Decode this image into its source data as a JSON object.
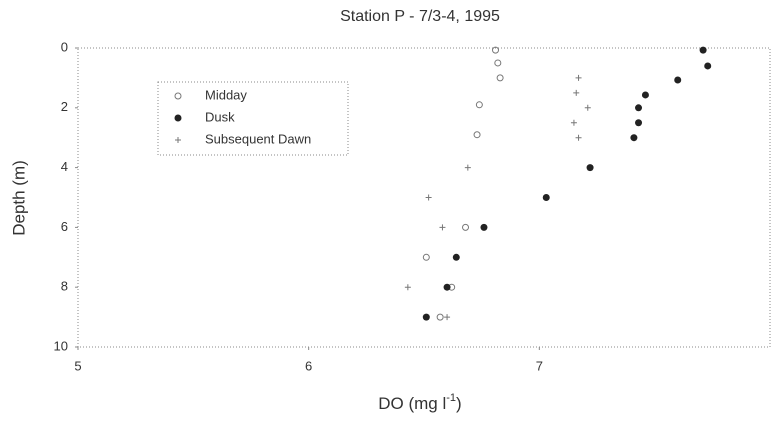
{
  "chart_data": {
    "type": "scatter",
    "title": "Station P - 7/3-4, 1995",
    "x_label": "DO (mg l",
    "x_label_sup": "-1",
    "x_label_end": ")",
    "y_label": "Depth (m)",
    "xlim": [
      5,
      8
    ],
    "xticks": [
      5,
      6,
      7
    ],
    "ylim": [
      10,
      0
    ],
    "yticks": [
      0,
      2,
      4,
      6,
      8,
      10
    ],
    "series": [
      {
        "name": "Midday",
        "color": "#777777",
        "marker": "open",
        "x": [
          6.81,
          6.82,
          6.83,
          6.74,
          6.73,
          6.68,
          6.51,
          6.62,
          6.57
        ],
        "values": [
          0.07,
          0.5,
          1,
          1.9,
          2.9,
          6,
          7,
          8,
          9
        ]
      },
      {
        "name": "Dusk",
        "color": "#222222",
        "marker": "filled",
        "x": [
          7.71,
          7.73,
          7.6,
          7.46,
          7.43,
          7.43,
          7.41,
          7.22,
          7.03,
          6.76,
          6.64,
          6.6,
          6.51
        ],
        "values": [
          0.07,
          0.6,
          1.07,
          1.57,
          2,
          2.5,
          3,
          4,
          5,
          6,
          7,
          8,
          9
        ]
      },
      {
        "name": "Subsequent Dawn",
        "color": "#777777",
        "marker": "plus",
        "x": [
          7.17,
          7.16,
          7.21,
          7.15,
          7.17,
          6.69,
          6.52,
          6.58,
          6.43,
          6.6
        ],
        "values": [
          1,
          1.5,
          2,
          2.5,
          3,
          4,
          5,
          6,
          8,
          9
        ]
      }
    ]
  }
}
